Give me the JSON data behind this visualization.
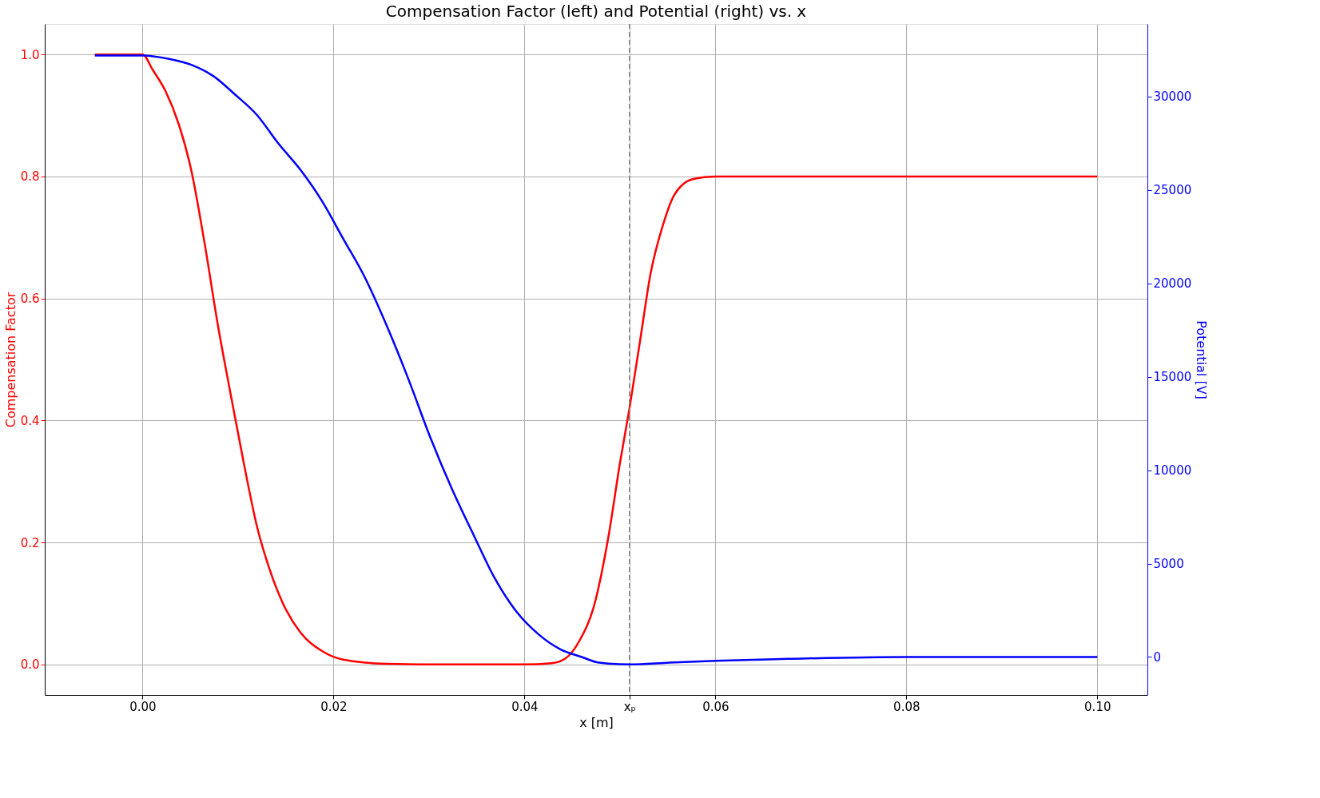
{
  "chart_data": {
    "type": "line",
    "title": "Compensation Factor (left) and Potential (right) vs. x",
    "xlabel": "x [m]",
    "ylabel": "Compensation Factor",
    "y2label": "Potential [V]",
    "xlim": [
      -0.01025,
      0.10525
    ],
    "xticks": [
      {
        "value": 0,
        "label": "0.00"
      },
      {
        "value": 0.02,
        "label": "0.02"
      },
      {
        "value": 0.04,
        "label": "0.04"
      },
      {
        "value": 0.051,
        "label": "xₚ"
      },
      {
        "value": 0.06,
        "label": "0.06"
      },
      {
        "value": 0.08,
        "label": "0.08"
      },
      {
        "value": 0.1,
        "label": "0.10"
      }
    ],
    "ylim": [
      -0.05,
      1.05
    ],
    "yticks": [
      {
        "value": 0,
        "label": "0.0"
      },
      {
        "value": 0.2,
        "label": "0.2"
      },
      {
        "value": 0.4,
        "label": "0.4"
      },
      {
        "value": 0.6,
        "label": "0.6"
      },
      {
        "value": 0.8,
        "label": "0.8"
      },
      {
        "value": 1,
        "label": "1.0"
      }
    ],
    "y2lim": [
      -2033,
      33885
    ],
    "y2ticks": [
      0,
      5000,
      10000,
      15000,
      20000,
      25000,
      30000
    ],
    "grid": true,
    "line_style": "solid",
    "marker": "none",
    "ref_lines": [
      {
        "axis": "x",
        "value": 0.051,
        "color": "#808080",
        "line_style": "dashed"
      }
    ],
    "series": [
      {
        "color": "#ff0000",
        "x": [
          -0.005,
          0,
          0.00105,
          0.0024,
          0.0038,
          0.0051,
          0.0065,
          0.0079,
          0.0092,
          0.0106,
          0.012,
          0.0133,
          0.0147,
          0.0165,
          0.0188,
          0.021,
          0.0256,
          0.0301,
          0.0347,
          0.04,
          0.0428,
          0.0443,
          0.0458,
          0.0473,
          0.0488,
          0.05,
          0.051,
          0.0522,
          0.0532,
          0.0545,
          0.0557,
          0.0577,
          0.06,
          0.07,
          0.08,
          0.09,
          0.1
        ],
        "values": [
          1,
          1,
          0.975,
          0.94,
          0.885,
          0.81,
          0.69,
          0.555,
          0.445,
          0.33,
          0.225,
          0.156,
          0.1,
          0.053,
          0.022,
          0.008,
          0.001,
          0,
          0,
          0,
          0.002,
          0.01,
          0.04,
          0.097,
          0.21,
          0.33,
          0.42,
          0.54,
          0.64,
          0.72,
          0.77,
          0.796,
          0.8,
          0.8,
          0.8,
          0.8,
          0.8
        ]
      },
      {
        "color": "#0000ff",
        "axis": "y2",
        "x": [
          -0.005,
          0,
          0.0029,
          0.0051,
          0.0074,
          0.0097,
          0.012,
          0.0142,
          0.0165,
          0.0188,
          0.021,
          0.0233,
          0.0256,
          0.0279,
          0.0301,
          0.0324,
          0.0347,
          0.0369,
          0.0392,
          0.0415,
          0.0438,
          0.046,
          0.0478,
          0.051,
          0.0552,
          0.06,
          0.0676,
          0.08,
          0.09,
          0.1
        ],
        "values": [
          32200,
          32200,
          32000,
          31700,
          31100,
          30100,
          29000,
          27500,
          26100,
          24400,
          22400,
          20300,
          17700,
          14800,
          11800,
          9000,
          6500,
          4200,
          2400,
          1200,
          400,
          0,
          -300,
          -400,
          -300,
          -200,
          -100,
          0,
          0,
          0
        ]
      }
    ]
  }
}
